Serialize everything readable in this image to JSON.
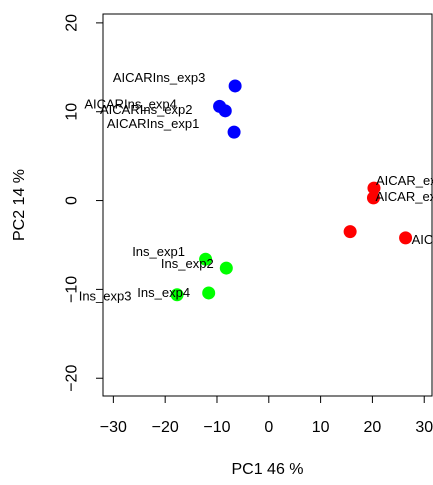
{
  "chart_data": {
    "type": "scatter",
    "xlabel": "PC1 46 %",
    "ylabel": "PC2 14 %",
    "xlim": [
      -32,
      31.5
    ],
    "ylim": [
      -22,
      21
    ],
    "x_ticks": [
      -30,
      -20,
      -10,
      0,
      10,
      20,
      30
    ],
    "y_ticks": [
      -20,
      -10,
      0,
      10,
      20
    ],
    "grid": false,
    "legend": "none",
    "series": [
      {
        "color": "#0000ff",
        "points": [
          {
            "x": -6.5,
            "y": 12.9,
            "label": "AICARIns_exp3"
          },
          {
            "x": -9.5,
            "y": 10.6,
            "label": "AICARIns_exp4"
          },
          {
            "x": -8.4,
            "y": 10.1,
            "label": "AICARIns_exp2"
          },
          {
            "x": -6.7,
            "y": 7.7,
            "label": "AICARIns_exp1"
          }
        ]
      },
      {
        "color": "#ff0000",
        "points": [
          {
            "x": 20.3,
            "y": 1.4,
            "label": "AICAR_exp"
          },
          {
            "x": 20.2,
            "y": 0.3,
            "label": "AICAR_exp"
          },
          {
            "x": 15.7,
            "y": -3.5,
            "label": ""
          },
          {
            "x": 26.4,
            "y": -4.2,
            "label": "AICAR_exp"
          }
        ]
      },
      {
        "color": "#00ff00",
        "points": [
          {
            "x": -12.2,
            "y": -6.6,
            "label": "Ins_exp1"
          },
          {
            "x": -8.2,
            "y": -7.6,
            "label": "Ins_exp2"
          },
          {
            "x": -17.7,
            "y": -10.6,
            "label": "Ins_exp3"
          },
          {
            "x": -11.6,
            "y": -10.4,
            "label": "Ins_exp4"
          }
        ]
      }
    ]
  }
}
